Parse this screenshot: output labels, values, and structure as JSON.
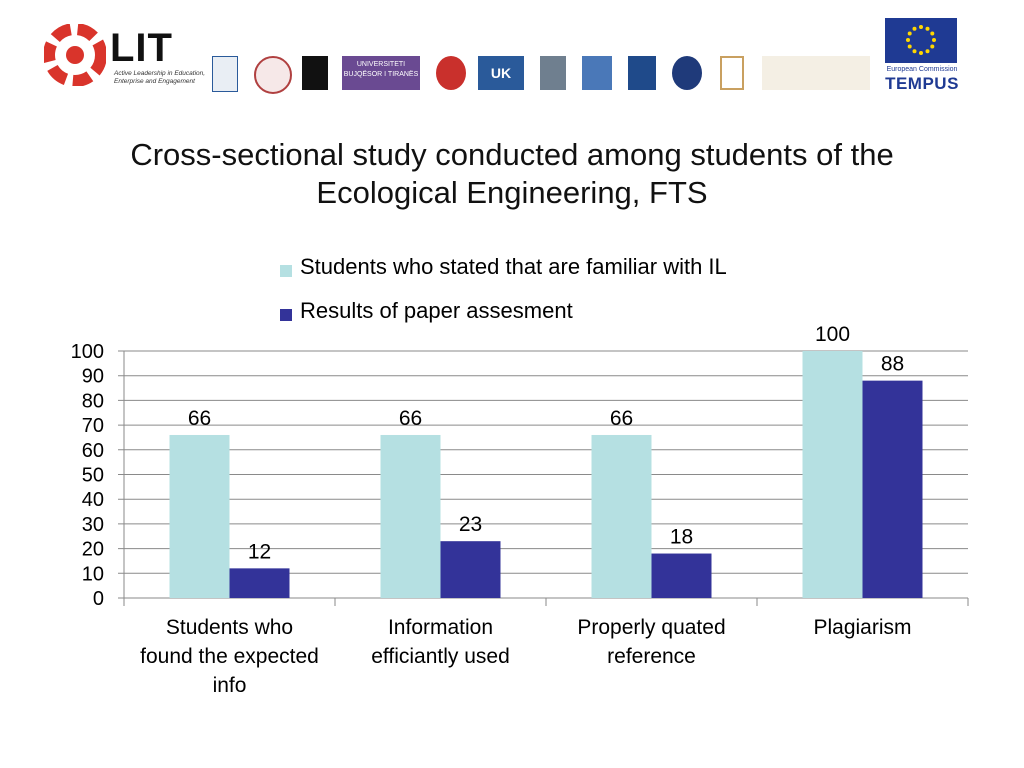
{
  "header": {
    "brand": "LIT",
    "brand_tagline": "Active Leadership in Education, Enterprise and Engagement",
    "funder_line": "European Commission",
    "funder_program": "TEMPUS",
    "partner_logo_labels": [
      "UNIVERSITETI BUJQËSOR I TIRANËS",
      "UK"
    ]
  },
  "title": "Cross-sectional study conducted among students of the Ecological Engineering, FTS",
  "colors": {
    "series1": "#b5e0e2",
    "series2": "#333399",
    "grid": "#8a8a8a",
    "eu_blue": "#1f3a93",
    "lit_red": "#d9342b"
  },
  "chart_data": {
    "type": "bar",
    "categories": [
      "Students who found the expected info",
      "Information efficiantly used",
      "Properly quated reference",
      "Plagiarism"
    ],
    "series": [
      {
        "name": "Students who stated that are familiar with IL",
        "values": [
          66,
          66,
          66,
          100
        ]
      },
      {
        "name": "Results of paper assesment",
        "values": [
          12,
          23,
          18,
          88
        ]
      }
    ],
    "ylim": [
      0,
      100
    ],
    "yticks": [
      "0",
      "10",
      "20",
      "30",
      "40",
      "50",
      "60",
      "70",
      "80",
      "90",
      "100"
    ],
    "grid": true,
    "legend_position": "top-center",
    "data_labels": true
  }
}
